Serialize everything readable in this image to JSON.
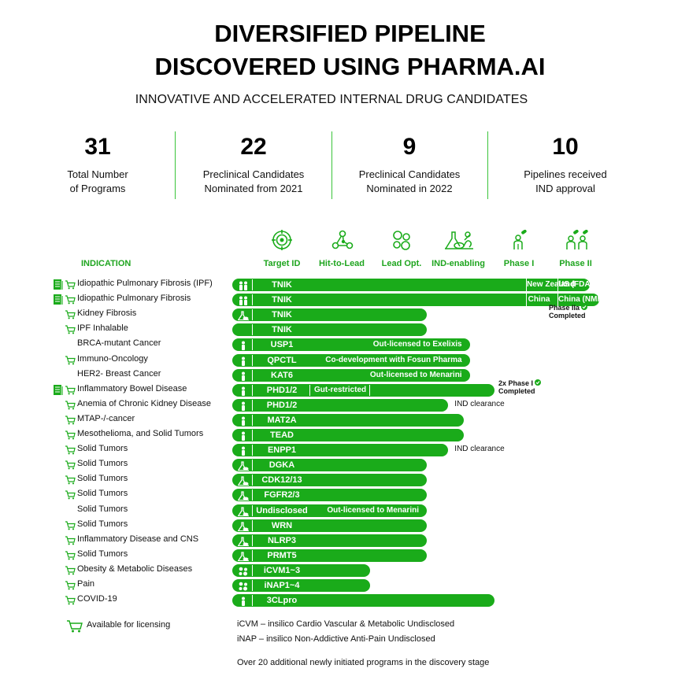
{
  "header": {
    "title_line1": "DIVERSIFIED PIPELINE",
    "title_line2": "DISCOVERED USING PHARMA.AI",
    "subtitle": "INNOVATIVE AND ACCELERATED INTERNAL DRUG CANDIDATES"
  },
  "stats": [
    {
      "value": "31",
      "label1": "Total Number",
      "label2": "of Programs"
    },
    {
      "value": "22",
      "label1": "Preclinical Candidates",
      "label2": "Nominated from 2021"
    },
    {
      "value": "9",
      "label1": "Preclinical Candidates",
      "label2": "Nominated in 2022"
    },
    {
      "value": "10",
      "label1": "Pipelines received",
      "label2": "IND approval"
    }
  ],
  "colors": {
    "accent": "#1aab1a",
    "accent_text": "#1fa51f",
    "divider": "#3ac43a"
  },
  "chart_data": {
    "type": "table",
    "indication_header": "INDICATION",
    "stages": [
      "Target ID",
      "Hit-to-Lead",
      "Lead Opt.",
      "IND-enabling",
      "Phase I",
      "Phase II"
    ],
    "stage_icons": [
      "target-icon",
      "molecule-network-icon",
      "bubbles-icon",
      "lab-animals-icon",
      "person-pill-icon",
      "people-pills-icon"
    ],
    "rows": [
      {
        "indication": "Idiopathic Pulmonary Fibrosis (IPF)",
        "target": "TNIK",
        "doc": true,
        "cart": true,
        "modality": "people-icon",
        "progress": 5.65,
        "segments": [
          {
            "text": "New Zealand",
            "from": 4.5,
            "to": 5.0
          },
          {
            "text": "US (FDA)",
            "from": 5.0,
            "to": 5.65
          }
        ]
      },
      {
        "indication": "Idiopathic Pulmonary Fibrosis",
        "target": "TNIK",
        "doc": true,
        "cart": true,
        "modality": "people-icon",
        "progress": 5.8,
        "segments": [
          {
            "text": "China",
            "from": 4.5,
            "to": 5.0
          },
          {
            "text": "China (NMPA)",
            "from": 5.0,
            "to": 5.8
          }
        ],
        "note_out": ""
      },
      {
        "indication": "Kidney Fibrosis",
        "target": "TNIK",
        "doc": false,
        "cart": true,
        "modality": "lab-icon",
        "progress": 3.0,
        "side_note": "Phase IIa Completed"
      },
      {
        "indication": "IPF Inhalable",
        "target": "TNIK",
        "doc": false,
        "cart": true,
        "modality": "none",
        "progress": 3.0
      },
      {
        "indication": "BRCA-mutant Cancer",
        "target": "USP1",
        "doc": false,
        "cart": false,
        "modality": "person-icon",
        "progress": 3.7,
        "inline_note": "Out-licensed to Exelixis"
      },
      {
        "indication": "Immuno-Oncology",
        "target": "QPCTL",
        "doc": false,
        "cart": true,
        "modality": "person-icon",
        "progress": 3.7,
        "inline_note": "Co-development with Fosun Pharma"
      },
      {
        "indication": "HER2- Breast Cancer",
        "target": "KAT6",
        "doc": false,
        "cart": false,
        "modality": "person-icon",
        "progress": 3.7,
        "inline_note": "Out-licensed to Menarini"
      },
      {
        "indication": "Inflammatory Bowel Disease",
        "target": "PHD1/2",
        "doc": true,
        "cart": true,
        "modality": "person-icon",
        "progress": 4.1,
        "inline_note_left": "Gut-restricted",
        "side_note": "2x Phase I Completed"
      },
      {
        "indication": "Anemia of Chronic Kidney Disease",
        "target": "PHD1/2",
        "doc": false,
        "cart": true,
        "modality": "person-icon",
        "progress": 3.35,
        "out_note": "IND clearance"
      },
      {
        "indication": "MTAP-/-cancer",
        "target": "MAT2A",
        "doc": false,
        "cart": true,
        "modality": "person-icon",
        "progress": 3.6
      },
      {
        "indication": "Mesothelioma, and Solid Tumors",
        "target": "TEAD",
        "doc": false,
        "cart": true,
        "modality": "person-icon",
        "progress": 3.6
      },
      {
        "indication": "Solid Tumors",
        "target": "ENPP1",
        "doc": false,
        "cart": true,
        "modality": "person-icon",
        "progress": 3.35,
        "out_note": "IND clearance"
      },
      {
        "indication": "Solid Tumors",
        "target": "DGKA",
        "doc": false,
        "cart": true,
        "modality": "lab-icon",
        "progress": 3.0
      },
      {
        "indication": "Solid Tumors",
        "target": "CDK12/13",
        "doc": false,
        "cart": true,
        "modality": "lab-icon",
        "progress": 3.0
      },
      {
        "indication": "Solid Tumors",
        "target": "FGFR2/3",
        "doc": false,
        "cart": true,
        "modality": "lab-icon",
        "progress": 3.0
      },
      {
        "indication": "Solid Tumors",
        "target": "Undisclosed",
        "doc": false,
        "cart": false,
        "modality": "lab-icon",
        "progress": 3.0,
        "inline_note": "Out-licensed to Menarini"
      },
      {
        "indication": "Solid Tumors",
        "target": "WRN",
        "doc": false,
        "cart": true,
        "modality": "lab-icon",
        "progress": 3.0
      },
      {
        "indication": "Inflammatory Disease and CNS",
        "target": "NLRP3",
        "doc": false,
        "cart": true,
        "modality": "lab-icon",
        "progress": 3.0
      },
      {
        "indication": "Solid Tumors",
        "target": "PRMT5",
        "doc": false,
        "cart": true,
        "modality": "lab-icon",
        "progress": 3.0
      },
      {
        "indication": "Obesity & Metabolic Diseases",
        "target": "iCVM1~3",
        "doc": false,
        "cart": true,
        "modality": "bubbles-icon",
        "progress": 2.0
      },
      {
        "indication": "Pain",
        "target": "iNAP1~4",
        "doc": false,
        "cart": true,
        "modality": "bubbles-icon",
        "progress": 2.0
      },
      {
        "indication": "COVID-19",
        "target": "3CLpro",
        "doc": false,
        "cart": true,
        "modality": "person-icon",
        "progress": 4.1
      }
    ]
  },
  "legend": {
    "label": "Available for licensing",
    "icon": "cart-icon"
  },
  "footnotes": {
    "icvm": "iCVM – insilico Cardio Vascular & Metabolic Undisclosed",
    "inap": "iNAP – insilico Non-Addictive Anti-Pain Undisclosed",
    "extra": "Over 20 additional newly initiated programs in the discovery stage"
  }
}
